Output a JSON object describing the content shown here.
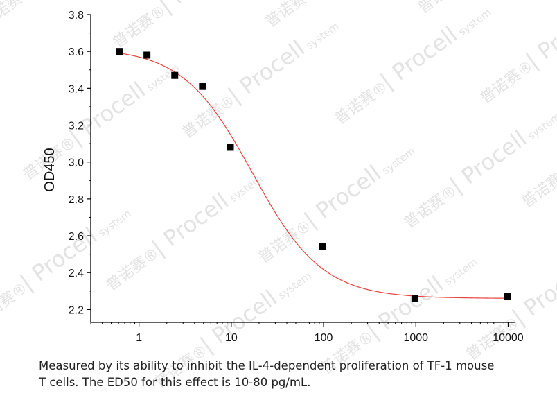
{
  "chart_data": {
    "type": "scatter",
    "xscale": "log",
    "xlim": [
      0.3,
      12000
    ],
    "ylim": [
      2.13,
      3.8
    ],
    "xlabel": "",
    "ylabel": "OD450",
    "x_ticks": [
      1,
      10,
      100,
      1000,
      10000
    ],
    "x_tick_labels": [
      "1",
      "10",
      "100",
      "1000",
      "10000"
    ],
    "y_ticks": [
      2.2,
      2.4,
      2.6,
      2.8,
      3.0,
      3.2,
      3.4,
      3.6,
      3.8
    ],
    "y_tick_labels": [
      "2.2",
      "2.4",
      "2.6",
      "2.8",
      "3.0",
      "3.2",
      "3.4",
      "3.6",
      "3.8"
    ],
    "grid": false,
    "legend": "none",
    "series": [
      {
        "marker": "square",
        "color": "#000000",
        "x": [
          0.61,
          1.22,
          2.44,
          4.88,
          9.77,
          97.7,
          977,
          9770
        ],
        "y": [
          3.6,
          3.58,
          3.47,
          3.41,
          3.08,
          2.54,
          2.26,
          2.27
        ]
      }
    ],
    "fit_curve": {
      "model": "4PL",
      "color": "#e8423c",
      "top": 3.62,
      "bottom": 2.26,
      "ec50": 17,
      "hill": 1.15,
      "x_range": [
        0.61,
        9770
      ]
    }
  },
  "caption": {
    "line1": "Measured by its ability to inhibit the IL-4-dependent proliferation of TF-1 mouse",
    "line2": "T cells. The ED50 for this effect is 10-80 pg/mL."
  },
  "watermark": {
    "brand": "Procell",
    "suffix": "system",
    "cn": "普诺赛",
    "reg": "®",
    "color": "#e3e3e3"
  }
}
